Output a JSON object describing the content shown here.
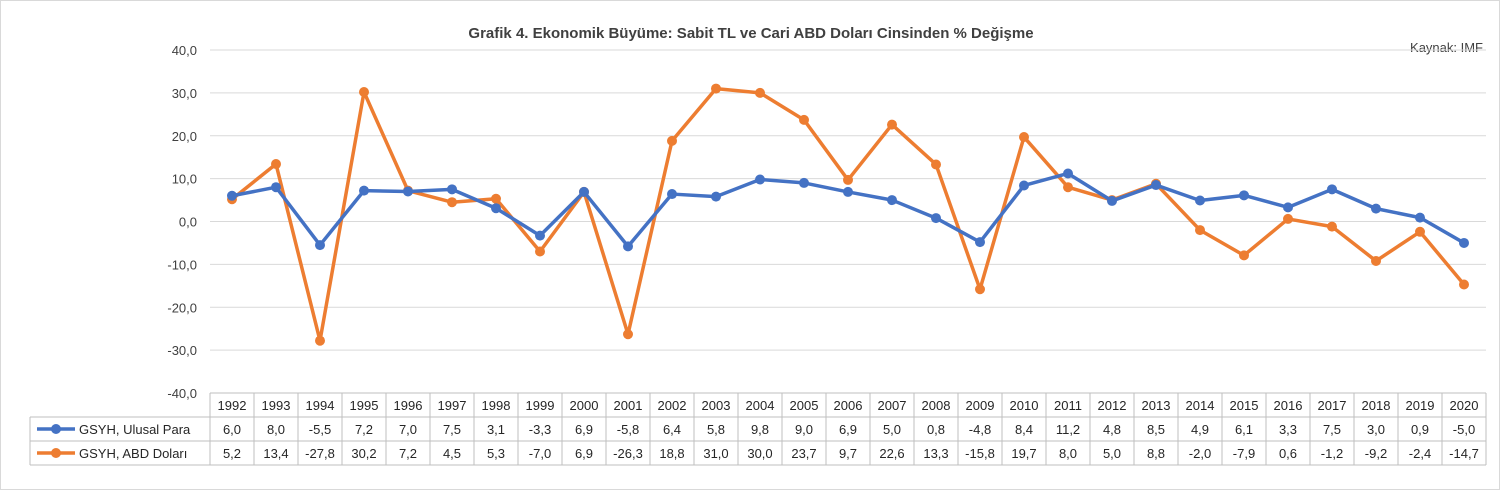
{
  "chart_data": {
    "type": "line",
    "title": "Grafik 4. Ekonomik Büyüme: Sabit TL ve Cari ABD Doları Cinsinden % Değişme",
    "source_note": "Kaynak: IMF",
    "categories": [
      "1992",
      "1993",
      "1994",
      "1995",
      "1996",
      "1997",
      "1998",
      "1999",
      "2000",
      "2001",
      "2002",
      "2003",
      "2004",
      "2005",
      "2006",
      "2007",
      "2008",
      "2009",
      "2010",
      "2011",
      "2012",
      "2013",
      "2014",
      "2015",
      "2016",
      "2017",
      "2018",
      "2019",
      "2020"
    ],
    "series": [
      {
        "name": "GSYH, Ulusal Para",
        "color": "#4472c4",
        "values": [
          6.0,
          8.0,
          -5.5,
          7.2,
          7.0,
          7.5,
          3.1,
          -3.3,
          6.9,
          -5.8,
          6.4,
          5.8,
          9.8,
          9.0,
          6.9,
          5.0,
          0.8,
          -4.8,
          8.4,
          11.2,
          4.8,
          8.5,
          4.9,
          6.1,
          3.3,
          7.5,
          3.0,
          0.9,
          -5.0
        ],
        "labels": [
          "6,0",
          "8,0",
          "-5,5",
          "7,2",
          "7,0",
          "7,5",
          "3,1",
          "-3,3",
          "6,9",
          "-5,8",
          "6,4",
          "5,8",
          "9,8",
          "9,0",
          "6,9",
          "5,0",
          "0,8",
          "-4,8",
          "8,4",
          "11,2",
          "4,8",
          "8,5",
          "4,9",
          "6,1",
          "3,3",
          "7,5",
          "3,0",
          "0,9",
          "-5,0"
        ]
      },
      {
        "name": "GSYH, ABD Doları",
        "color": "#ed7d31",
        "values": [
          5.2,
          13.4,
          -27.8,
          30.2,
          7.2,
          4.5,
          5.3,
          -7.0,
          6.9,
          -26.3,
          18.8,
          31.0,
          30.0,
          23.7,
          9.7,
          22.6,
          13.3,
          -15.8,
          19.7,
          8.0,
          5.0,
          8.8,
          -2.0,
          -7.9,
          0.6,
          -1.2,
          -9.2,
          -2.4,
          -14.7
        ],
        "labels": [
          "5,2",
          "13,4",
          "-27,8",
          "30,2",
          "7,2",
          "4,5",
          "5,3",
          "-7,0",
          "6,9",
          "-26,3",
          "18,8",
          "31,0",
          "30,0",
          "23,7",
          "9,7",
          "22,6",
          "13,3",
          "-15,8",
          "19,7",
          "8,0",
          "5,0",
          "8,8",
          "-2,0",
          "-7,9",
          "0,6",
          "-1,2",
          "-9,2",
          "-2,4",
          "-14,7"
        ]
      }
    ],
    "ylim": [
      -40,
      40
    ],
    "yticks": [
      "40,0",
      "30,0",
      "20,0",
      "10,0",
      "0,0",
      "-10,0",
      "-20,0",
      "-30,0",
      "-40,0"
    ],
    "ytick_values": [
      40,
      30,
      20,
      10,
      0,
      -10,
      -20,
      -30,
      -40
    ],
    "grid": true,
    "legend": "data-table",
    "has_data_table": true,
    "xlabel": "",
    "ylabel": ""
  },
  "colors": {
    "grid": "#d9d9d9",
    "axis_text": "#404040",
    "table_border": "#bfbfbf"
  }
}
